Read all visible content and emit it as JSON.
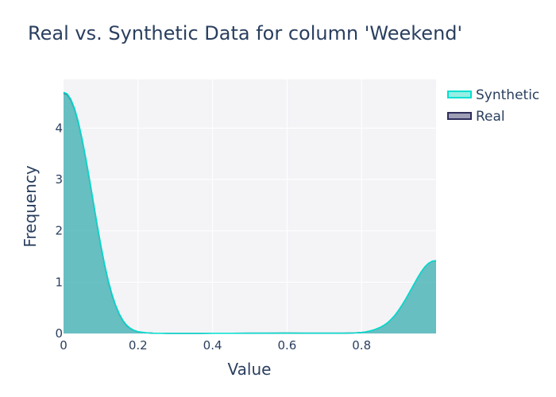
{
  "chart_data": {
    "type": "area",
    "title": "Real vs. Synthetic Data for column 'Weekend'",
    "xlabel": "Value",
    "ylabel": "Frequency",
    "xlim": [
      0,
      1
    ],
    "ylim": [
      0,
      4.95
    ],
    "x_ticks": [
      0,
      0.2,
      0.4,
      0.6,
      0.8
    ],
    "x_tick_labels": [
      "0",
      "0.2",
      "0.4",
      "0.6",
      "0.8"
    ],
    "y_ticks": [
      0,
      1,
      2,
      3,
      4
    ],
    "y_tick_labels": [
      "0",
      "1",
      "2",
      "3",
      "4"
    ],
    "grid": true,
    "legend_position": "top-right",
    "series": [
      {
        "name": "Synthetic",
        "color": "#00e0d0",
        "fill": "rgba(64,224,208,0.55)",
        "x": [
          0,
          0.01,
          0.02,
          0.03,
          0.04,
          0.05,
          0.06,
          0.07,
          0.08,
          0.09,
          0.1,
          0.11,
          0.12,
          0.13,
          0.14,
          0.15,
          0.16,
          0.17,
          0.18,
          0.19,
          0.2,
          0.22,
          0.24,
          0.26,
          0.28,
          0.3,
          0.35,
          0.4,
          0.45,
          0.5,
          0.55,
          0.6,
          0.65,
          0.7,
          0.75,
          0.78,
          0.8,
          0.81,
          0.82,
          0.83,
          0.84,
          0.85,
          0.86,
          0.87,
          0.88,
          0.89,
          0.9,
          0.91,
          0.92,
          0.93,
          0.94,
          0.95,
          0.96,
          0.97,
          0.98,
          0.99,
          1.0
        ],
        "y": [
          4.7,
          4.67,
          4.56,
          4.38,
          4.12,
          3.79,
          3.41,
          3.0,
          2.57,
          2.14,
          1.73,
          1.36,
          1.04,
          0.77,
          0.55,
          0.38,
          0.25,
          0.16,
          0.1,
          0.06,
          0.035,
          0.015,
          0.006,
          0.003,
          0.002,
          0.002,
          0.002,
          0.003,
          0.004,
          0.005,
          0.006,
          0.007,
          0.006,
          0.005,
          0.006,
          0.009,
          0.02,
          0.03,
          0.045,
          0.065,
          0.09,
          0.12,
          0.16,
          0.21,
          0.28,
          0.36,
          0.46,
          0.57,
          0.69,
          0.82,
          0.95,
          1.08,
          1.2,
          1.3,
          1.37,
          1.41,
          1.42
        ]
      },
      {
        "name": "Real",
        "color": "#2e2e5c",
        "fill": "rgba(40,40,90,0.45)",
        "x": [
          0,
          0.01,
          0.02,
          0.03,
          0.04,
          0.05,
          0.06,
          0.07,
          0.08,
          0.09,
          0.1,
          0.11,
          0.12,
          0.13,
          0.14,
          0.15,
          0.16,
          0.17,
          0.18,
          0.19,
          0.2,
          0.22,
          0.24,
          0.26,
          0.28,
          0.3,
          0.35,
          0.4,
          0.45,
          0.5,
          0.55,
          0.6,
          0.65,
          0.7,
          0.75,
          0.78,
          0.8,
          0.81,
          0.82,
          0.83,
          0.84,
          0.85,
          0.86,
          0.87,
          0.88,
          0.89,
          0.9,
          0.91,
          0.92,
          0.93,
          0.94,
          0.95,
          0.96,
          0.97,
          0.98,
          0.99,
          1.0
        ],
        "y": [
          4.68,
          4.65,
          4.54,
          4.36,
          4.1,
          3.77,
          3.39,
          2.98,
          2.55,
          2.12,
          1.71,
          1.34,
          1.02,
          0.75,
          0.54,
          0.37,
          0.24,
          0.15,
          0.095,
          0.058,
          0.033,
          0.014,
          0.005,
          0.003,
          0.002,
          0.002,
          0.002,
          0.003,
          0.004,
          0.005,
          0.006,
          0.007,
          0.006,
          0.005,
          0.006,
          0.009,
          0.019,
          0.029,
          0.044,
          0.063,
          0.088,
          0.118,
          0.158,
          0.208,
          0.278,
          0.358,
          0.458,
          0.568,
          0.688,
          0.818,
          0.948,
          1.078,
          1.198,
          1.298,
          1.368,
          1.408,
          1.418
        ]
      }
    ]
  }
}
